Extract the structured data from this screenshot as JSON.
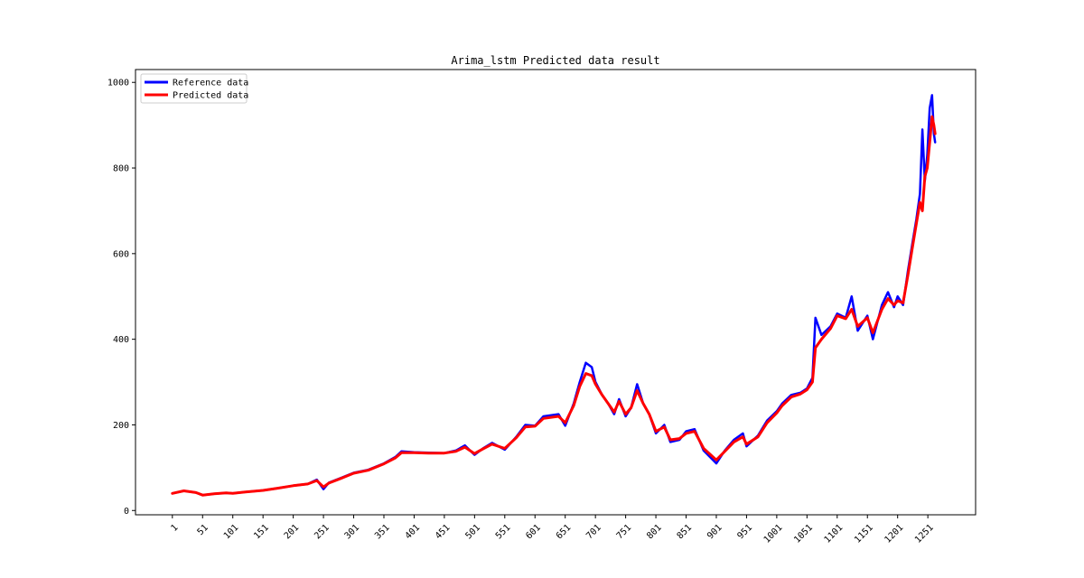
{
  "chart_data": {
    "type": "line",
    "title": "Arima_lstm Predicted data result",
    "xlabel": "",
    "ylabel": "",
    "xlim": [
      -60,
      1330
    ],
    "ylim": [
      -10,
      1030
    ],
    "x_ticks": [
      1,
      51,
      101,
      151,
      201,
      251,
      301,
      351,
      401,
      451,
      501,
      551,
      601,
      651,
      701,
      751,
      801,
      851,
      901,
      951,
      1001,
      1051,
      1101,
      1151,
      1201,
      1251
    ],
    "x_tick_labels": [
      "1",
      "51",
      "101",
      "151",
      "201",
      "251",
      "301",
      "351",
      "401",
      "451",
      "501",
      "551",
      "601",
      "651",
      "701",
      "751",
      "801",
      "851",
      "901",
      "951",
      "1001",
      "1051",
      "1101",
      "1151",
      "1201",
      "1251"
    ],
    "y_ticks": [
      0,
      200,
      400,
      600,
      800,
      1000
    ],
    "y_tick_labels": [
      "0",
      "200",
      "400",
      "600",
      "800",
      "1000"
    ],
    "grid": false,
    "legend_position": "top-left",
    "series": [
      {
        "name": "Reference data",
        "color": "#0000ff",
        "points": [
          [
            1,
            40
          ],
          [
            20,
            46
          ],
          [
            40,
            42
          ],
          [
            51,
            36
          ],
          [
            70,
            39
          ],
          [
            90,
            41
          ],
          [
            101,
            40
          ],
          [
            120,
            43
          ],
          [
            151,
            47
          ],
          [
            175,
            52
          ],
          [
            201,
            58
          ],
          [
            225,
            62
          ],
          [
            240,
            72
          ],
          [
            251,
            50
          ],
          [
            260,
            65
          ],
          [
            280,
            76
          ],
          [
            301,
            88
          ],
          [
            325,
            95
          ],
          [
            351,
            110
          ],
          [
            370,
            125
          ],
          [
            380,
            138
          ],
          [
            401,
            136
          ],
          [
            425,
            135
          ],
          [
            451,
            134
          ],
          [
            470,
            140
          ],
          [
            485,
            152
          ],
          [
            501,
            130
          ],
          [
            515,
            145
          ],
          [
            530,
            158
          ],
          [
            551,
            142
          ],
          [
            570,
            172
          ],
          [
            585,
            200
          ],
          [
            601,
            198
          ],
          [
            615,
            220
          ],
          [
            640,
            225
          ],
          [
            651,
            198
          ],
          [
            665,
            250
          ],
          [
            675,
            300
          ],
          [
            685,
            345
          ],
          [
            695,
            335
          ],
          [
            701,
            300
          ],
          [
            712,
            270
          ],
          [
            722,
            250
          ],
          [
            732,
            225
          ],
          [
            740,
            260
          ],
          [
            751,
            220
          ],
          [
            760,
            240
          ],
          [
            770,
            295
          ],
          [
            780,
            250
          ],
          [
            790,
            225
          ],
          [
            801,
            180
          ],
          [
            815,
            200
          ],
          [
            825,
            160
          ],
          [
            840,
            165
          ],
          [
            851,
            185
          ],
          [
            865,
            190
          ],
          [
            880,
            140
          ],
          [
            901,
            110
          ],
          [
            915,
            140
          ],
          [
            930,
            165
          ],
          [
            945,
            180
          ],
          [
            951,
            150
          ],
          [
            970,
            175
          ],
          [
            985,
            210
          ],
          [
            1001,
            232
          ],
          [
            1010,
            250
          ],
          [
            1025,
            270
          ],
          [
            1040,
            275
          ],
          [
            1051,
            285
          ],
          [
            1060,
            310
          ],
          [
            1065,
            450
          ],
          [
            1075,
            410
          ],
          [
            1090,
            430
          ],
          [
            1101,
            460
          ],
          [
            1115,
            450
          ],
          [
            1125,
            500
          ],
          [
            1135,
            420
          ],
          [
            1151,
            455
          ],
          [
            1160,
            400
          ],
          [
            1175,
            480
          ],
          [
            1185,
            510
          ],
          [
            1195,
            475
          ],
          [
            1201,
            500
          ],
          [
            1210,
            480
          ],
          [
            1218,
            560
          ],
          [
            1225,
            620
          ],
          [
            1232,
            680
          ],
          [
            1238,
            740
          ],
          [
            1242,
            890
          ],
          [
            1246,
            770
          ],
          [
            1250,
            830
          ],
          [
            1254,
            940
          ],
          [
            1258,
            970
          ],
          [
            1261,
            880
          ],
          [
            1263,
            860
          ]
        ]
      },
      {
        "name": "Predicted data",
        "color": "#ff0000",
        "points": [
          [
            1,
            40
          ],
          [
            20,
            46
          ],
          [
            40,
            42
          ],
          [
            51,
            36
          ],
          [
            70,
            39
          ],
          [
            90,
            41
          ],
          [
            101,
            40
          ],
          [
            120,
            43
          ],
          [
            151,
            47
          ],
          [
            175,
            52
          ],
          [
            201,
            58
          ],
          [
            225,
            62
          ],
          [
            240,
            70
          ],
          [
            251,
            55
          ],
          [
            260,
            64
          ],
          [
            280,
            75
          ],
          [
            301,
            87
          ],
          [
            325,
            94
          ],
          [
            351,
            109
          ],
          [
            370,
            123
          ],
          [
            380,
            135
          ],
          [
            401,
            135
          ],
          [
            425,
            134
          ],
          [
            451,
            134
          ],
          [
            470,
            138
          ],
          [
            485,
            148
          ],
          [
            501,
            133
          ],
          [
            515,
            144
          ],
          [
            530,
            155
          ],
          [
            551,
            145
          ],
          [
            570,
            170
          ],
          [
            585,
            195
          ],
          [
            601,
            197
          ],
          [
            615,
            215
          ],
          [
            640,
            220
          ],
          [
            651,
            205
          ],
          [
            665,
            245
          ],
          [
            675,
            290
          ],
          [
            685,
            320
          ],
          [
            695,
            315
          ],
          [
            701,
            295
          ],
          [
            712,
            270
          ],
          [
            722,
            250
          ],
          [
            732,
            230
          ],
          [
            740,
            255
          ],
          [
            751,
            225
          ],
          [
            760,
            240
          ],
          [
            770,
            280
          ],
          [
            780,
            250
          ],
          [
            790,
            225
          ],
          [
            801,
            185
          ],
          [
            815,
            195
          ],
          [
            825,
            165
          ],
          [
            840,
            168
          ],
          [
            851,
            180
          ],
          [
            865,
            185
          ],
          [
            880,
            145
          ],
          [
            901,
            118
          ],
          [
            915,
            138
          ],
          [
            930,
            160
          ],
          [
            945,
            172
          ],
          [
            951,
            155
          ],
          [
            970,
            172
          ],
          [
            985,
            205
          ],
          [
            1001,
            228
          ],
          [
            1010,
            245
          ],
          [
            1025,
            265
          ],
          [
            1040,
            272
          ],
          [
            1051,
            282
          ],
          [
            1060,
            300
          ],
          [
            1065,
            380
          ],
          [
            1075,
            400
          ],
          [
            1090,
            425
          ],
          [
            1101,
            455
          ],
          [
            1115,
            448
          ],
          [
            1125,
            470
          ],
          [
            1135,
            430
          ],
          [
            1151,
            450
          ],
          [
            1160,
            415
          ],
          [
            1175,
            470
          ],
          [
            1185,
            495
          ],
          [
            1195,
            480
          ],
          [
            1201,
            490
          ],
          [
            1210,
            485
          ],
          [
            1218,
            550
          ],
          [
            1225,
            610
          ],
          [
            1232,
            670
          ],
          [
            1238,
            720
          ],
          [
            1242,
            700
          ],
          [
            1246,
            780
          ],
          [
            1250,
            800
          ],
          [
            1254,
            860
          ],
          [
            1258,
            920
          ],
          [
            1261,
            900
          ],
          [
            1263,
            880
          ]
        ]
      }
    ]
  }
}
